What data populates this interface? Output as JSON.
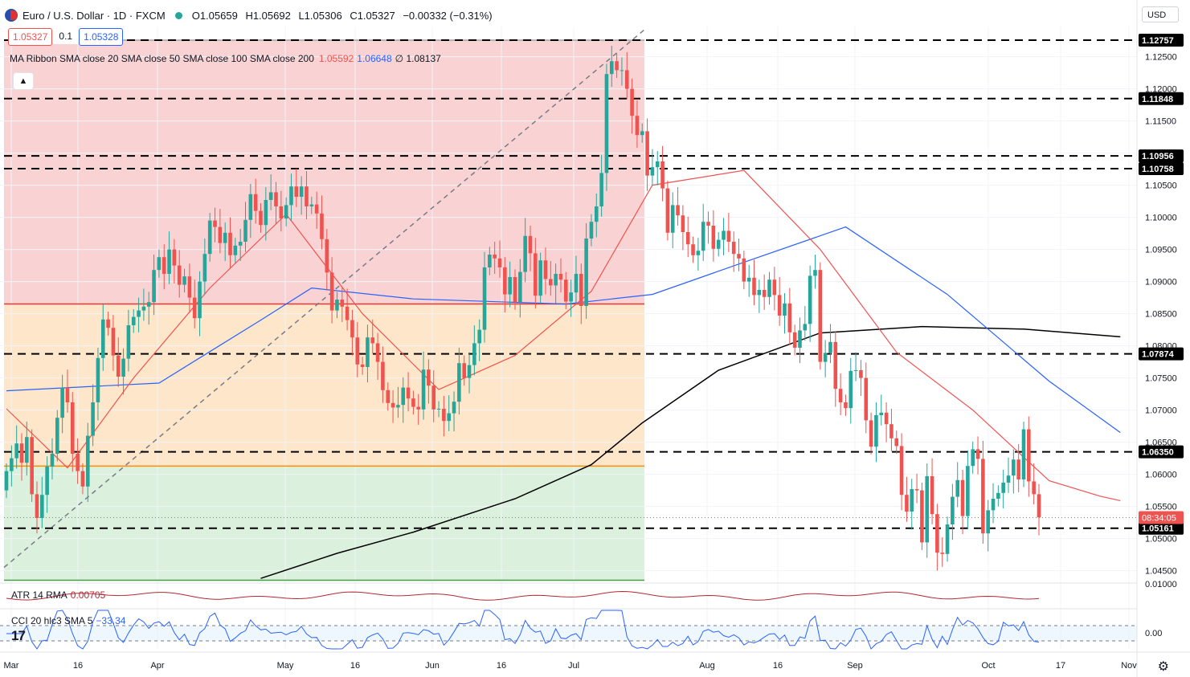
{
  "header": {
    "symbol": "Euro / U.S. Dollar · 1D · FXCM",
    "open": "O1.05659",
    "high": "H1.05692",
    "low": "L1.05306",
    "close": "C1.05327",
    "change": "−0.00332 (−0.31%)",
    "bid": "1.05327",
    "spread": "0.1",
    "ask": "1.05328"
  },
  "ma_legend": {
    "label": "MA Ribbon SMA close 20 SMA close 50 SMA close 100 SMA close 200",
    "v1": "1.05592",
    "v2": "1.06648",
    "v3": "∅ 1.08137"
  },
  "currency": "USD",
  "collapse_icon": "▲",
  "atr": {
    "label": "ATR 14 RMA",
    "value": "0.00705"
  },
  "cci": {
    "label": "CCI 20 hlc3 SMA 5",
    "value": "−33.34"
  },
  "logo_text": "17",
  "colors": {
    "up": "#26a69a",
    "down": "#ef5350",
    "sma20": "#ef5350",
    "sma50": "#2962ff",
    "sma200": "#000000",
    "fib_red_zone": "#f8c8c8",
    "fib_orange_zone": "#fde3c3",
    "fib_green_zone": "#d7efd9"
  },
  "chart_data": {
    "type": "candlestick",
    "x_axis_labels": [
      "Mar",
      "16",
      "Apr",
      "May",
      "16",
      "Jun",
      "16",
      "Jul",
      "Aug",
      "16",
      "Sep",
      "Oct",
      "17",
      "Nov"
    ],
    "y_axis_labels": [
      "1.12500",
      "1.12000",
      "1.11500",
      "1.11000",
      "1.10500",
      "1.10000",
      "1.09500",
      "1.09000",
      "1.08500",
      "1.08000",
      "1.07500",
      "1.07000",
      "1.06500",
      "1.06000",
      "1.05500",
      "1.05000",
      "1.04500"
    ],
    "price_range": [
      1.0432,
      1.1297
    ],
    "current_price": "1.05327",
    "countdown": "08:34:05",
    "horizontal_levels": [
      {
        "value": 1.12757,
        "label": "1.12757"
      },
      {
        "value": 1.11848,
        "label": "1.11848"
      },
      {
        "value": 1.10956,
        "label": "1.10956"
      },
      {
        "value": 1.10758,
        "label": "1.10758"
      },
      {
        "value": 1.07874,
        "label": "1.07874"
      },
      {
        "value": 1.0635,
        "label": "1.06350"
      },
      {
        "value": 1.05161,
        "label": "1.05161"
      }
    ],
    "fib_levels": [
      1.12757,
      1.08652,
      1.06128,
      1.04352
    ],
    "closes": [
      1.0605,
      1.0625,
      1.0648,
      1.0618,
      1.0658,
      1.0569,
      1.0532,
      1.0568,
      1.0612,
      1.0632,
      1.0688,
      1.0735,
      1.0712,
      1.0632,
      1.0605,
      1.0581,
      1.066,
      1.0712,
      1.0781,
      1.0841,
      1.0828,
      1.0785,
      1.0752,
      1.078,
      1.0832,
      1.0845,
      1.0855,
      1.0861,
      1.0868,
      1.0918,
      1.0938,
      1.0912,
      1.095,
      1.0925,
      1.0895,
      1.0908,
      1.0875,
      1.0843,
      1.09,
      1.0943,
      1.0995,
      1.0985,
      1.096,
      1.0976,
      1.0941,
      1.0956,
      1.0962,
      1.0996,
      1.1036,
      1.101,
      1.0988,
      1.1027,
      1.1039,
      1.1017,
      1.0998,
      1.1019,
      1.1048,
      1.1032,
      1.1048,
      1.1017,
      1.102,
      1.1006,
      1.0966,
      1.0914,
      1.0855,
      1.0872,
      1.0861,
      1.084,
      1.0813,
      1.0771,
      1.0767,
      1.0813,
      1.0804,
      1.0775,
      1.0731,
      1.0711,
      1.0704,
      1.0708,
      1.0735,
      1.0718,
      1.0705,
      1.0701,
      1.0763,
      1.0738,
      1.0701,
      1.0702,
      1.0683,
      1.0695,
      1.0713,
      1.0773,
      1.075,
      1.077,
      1.0804,
      1.0825,
      1.0922,
      1.0942,
      1.0936,
      1.0922,
      1.088,
      1.0907,
      1.0868,
      1.0915,
      1.0971,
      1.0944,
      1.0878,
      1.0933,
      1.0904,
      1.0894,
      1.0912,
      1.0903,
      1.0869,
      1.0883,
      1.0912,
      1.0862,
      1.0967,
      1.0993,
      1.1017,
      1.1069,
      1.1223,
      1.1243,
      1.1229,
      1.1229,
      1.12,
      1.1158,
      1.1128,
      1.1134,
      1.1065,
      1.1078,
      1.1087,
      1.1045,
      1.0976,
      1.1019,
      1.1003,
      1.0977,
      1.0958,
      1.0941,
      1.0948,
      1.0993,
      1.0987,
      1.0951,
      1.0965,
      1.0979,
      1.0962,
      1.0943,
      1.0936,
      1.09,
      1.0906,
      1.0879,
      1.0887,
      1.0876,
      1.0903,
      1.0879,
      1.0847,
      1.0866,
      1.0821,
      1.0797,
      1.0824,
      1.0834,
      1.0909,
      1.0918,
      1.0775,
      1.0789,
      1.0806,
      1.0733,
      1.0712,
      1.0703,
      1.0761,
      1.0762,
      1.075,
      1.0684,
      1.0643,
      1.0692,
      1.0696,
      1.0678,
      1.0656,
      1.0644,
      1.0568,
      1.0542,
      1.0577,
      1.0575,
      1.0494,
      1.0597,
      1.0538,
      1.0478,
      1.0476,
      1.0522,
      1.0565,
      1.0591,
      1.0535,
      1.0613,
      1.0639,
      1.0624,
      1.0508,
      1.0544,
      1.0562,
      1.0571,
      1.0587,
      1.0598,
      1.0623,
      1.0592,
      1.067,
      1.0589,
      1.0569,
      1.0533
    ],
    "sma20_points": [
      [
        0,
        1.0702
      ],
      [
        12,
        1.061
      ],
      [
        25,
        1.075
      ],
      [
        40,
        1.089
      ],
      [
        55,
        1.1005
      ],
      [
        70,
        1.085
      ],
      [
        85,
        1.0732
      ],
      [
        100,
        1.0785
      ],
      [
        115,
        1.0885
      ],
      [
        127,
        1.105
      ],
      [
        145,
        1.1073
      ],
      [
        160,
        1.095
      ],
      [
        175,
        1.079
      ],
      [
        190,
        1.07
      ],
      [
        205,
        1.059
      ],
      [
        215,
        1.0566
      ],
      [
        219,
        1.0559
      ]
    ],
    "sma50_points": [
      [
        0,
        1.073
      ],
      [
        30,
        1.0742
      ],
      [
        50,
        1.084
      ],
      [
        60,
        1.089
      ],
      [
        80,
        1.0873
      ],
      [
        110,
        1.0865
      ],
      [
        127,
        1.088
      ],
      [
        145,
        1.093
      ],
      [
        165,
        1.0985
      ],
      [
        185,
        1.088
      ],
      [
        205,
        1.0745
      ],
      [
        219,
        1.0665
      ]
    ],
    "sma200_points": [
      [
        50,
        1.0438
      ],
      [
        65,
        1.0477
      ],
      [
        80,
        1.051
      ],
      [
        100,
        1.0562
      ],
      [
        115,
        1.0615
      ],
      [
        125,
        1.068
      ],
      [
        140,
        1.0762
      ],
      [
        160,
        1.082
      ],
      [
        180,
        1.083
      ],
      [
        200,
        1.0826
      ],
      [
        219,
        1.0814
      ]
    ],
    "atr_value": 0.00705,
    "atr_axis_label": "0.01000",
    "cci_axis_label": "0.00"
  }
}
